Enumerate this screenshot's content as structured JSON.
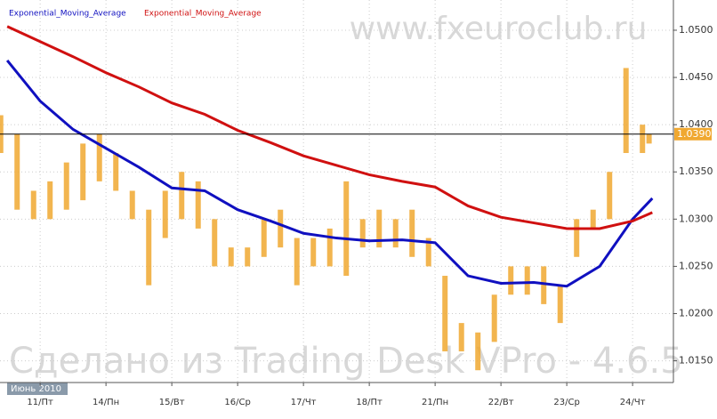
{
  "chart_data": {
    "type": "line",
    "legend": [
      "Exponential_Moving_Average",
      "Exponential_Moving_Average"
    ],
    "watermark": "www.fxeuroclub.ru",
    "footer_watermark": "Сделано из Trading Desk VPro - 4.6.5",
    "period_label": "Июнь 2010",
    "grid": true,
    "xlim": [
      -0.61,
      9.62
    ],
    "xticks": [
      {
        "value": 0,
        "label": "11/Пт"
      },
      {
        "value": 1,
        "label": "14/Пн"
      },
      {
        "value": 2,
        "label": "15/Вт"
      },
      {
        "value": 3,
        "label": "16/Ср"
      },
      {
        "value": 4,
        "label": "17/Чт"
      },
      {
        "value": 5,
        "label": "18/Пт"
      },
      {
        "value": 6,
        "label": "21/Пн"
      },
      {
        "value": 7,
        "label": "22/Вт"
      },
      {
        "value": 8,
        "label": "23/Ср"
      },
      {
        "value": 9,
        "label": "24/Чт"
      }
    ],
    "ylim": [
      1.0127,
      1.0532
    ],
    "yticks": [
      {
        "value": 1.015,
        "label": "1.0150"
      },
      {
        "value": 1.02,
        "label": "1.0200"
      },
      {
        "value": 1.025,
        "label": "1.0250"
      },
      {
        "value": 1.03,
        "label": "1.0300"
      },
      {
        "value": 1.035,
        "label": "1.0350"
      },
      {
        "value": 1.04,
        "label": "1.0400"
      },
      {
        "value": 1.045,
        "label": "1.0450"
      },
      {
        "value": 1.05,
        "label": "1.0500"
      }
    ],
    "last_price": {
      "value": 1.039,
      "label": "1.0390",
      "color": "#f0a830"
    },
    "price_bars": {
      "color": "#f0a830",
      "x": [
        -0.6,
        -0.35,
        -0.1,
        0.15,
        0.4,
        0.65,
        0.9,
        1.15,
        1.4,
        1.65,
        1.9,
        2.15,
        2.4,
        2.65,
        2.9,
        3.15,
        3.4,
        3.65,
        3.9,
        4.15,
        4.4,
        4.65,
        4.9,
        5.15,
        5.4,
        5.65,
        5.9,
        6.15,
        6.4,
        6.65,
        6.9,
        7.15,
        7.4,
        7.65,
        7.9,
        8.15,
        8.4,
        8.65,
        8.9,
        9.15,
        9.25
      ],
      "high": [
        1.041,
        1.039,
        1.033,
        1.034,
        1.036,
        1.038,
        1.039,
        1.037,
        1.033,
        1.031,
        1.033,
        1.035,
        1.034,
        1.03,
        1.027,
        1.027,
        1.03,
        1.031,
        1.028,
        1.028,
        1.029,
        1.034,
        1.03,
        1.031,
        1.03,
        1.031,
        1.028,
        1.024,
        1.019,
        1.018,
        1.022,
        1.025,
        1.025,
        1.025,
        1.023,
        1.03,
        1.031,
        1.035,
        1.046,
        1.04,
        1.039
      ],
      "low": [
        1.037,
        1.031,
        1.03,
        1.03,
        1.031,
        1.032,
        1.034,
        1.033,
        1.03,
        1.023,
        1.028,
        1.03,
        1.029,
        1.025,
        1.025,
        1.025,
        1.026,
        1.027,
        1.023,
        1.025,
        1.025,
        1.024,
        1.027,
        1.027,
        1.027,
        1.026,
        1.025,
        1.016,
        1.016,
        1.014,
        1.017,
        1.022,
        1.022,
        1.021,
        1.019,
        1.026,
        1.029,
        1.03,
        1.037,
        1.037,
        1.038
      ]
    },
    "x": [
      -0.5,
      0,
      0.5,
      1,
      1.5,
      2,
      2.5,
      3,
      3.5,
      4,
      4.5,
      5,
      5.5,
      6,
      6.5,
      7,
      7.5,
      8,
      8.5,
      9,
      9.3
    ],
    "series": [
      {
        "name": "Exponential_Moving_Average",
        "color": "#1010c0",
        "values": [
          1.0468,
          1.0425,
          1.0395,
          1.0375,
          1.0355,
          1.0333,
          1.033,
          1.031,
          1.0298,
          1.0285,
          1.028,
          1.0277,
          1.0278,
          1.0275,
          1.024,
          1.0232,
          1.0233,
          1.0229,
          1.025,
          1.03,
          1.0322
        ]
      },
      {
        "name": "Exponential_Moving_Average",
        "color": "#d01010",
        "values": [
          1.0504,
          1.0488,
          1.0472,
          1.0455,
          1.044,
          1.0423,
          1.0411,
          1.0394,
          1.0381,
          1.0367,
          1.0357,
          1.0347,
          1.034,
          1.0334,
          1.0314,
          1.0302,
          1.0296,
          1.029,
          1.029,
          1.0298,
          1.0307
        ]
      }
    ]
  }
}
